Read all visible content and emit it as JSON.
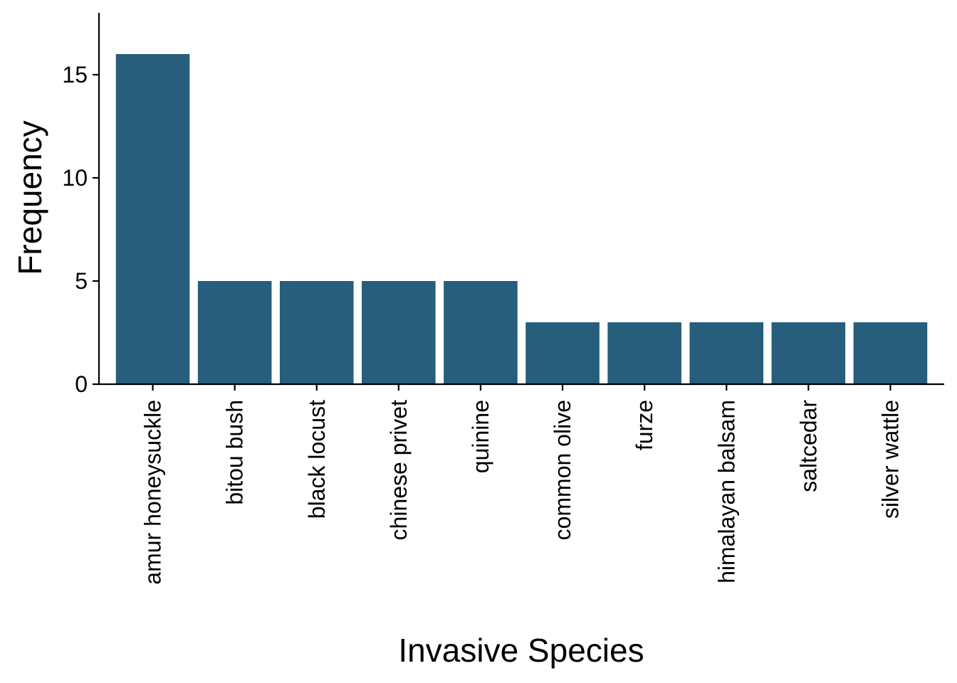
{
  "chart_data": {
    "type": "bar",
    "title": "",
    "xlabel": "Invasive Species",
    "ylabel": "Frequency",
    "categories": [
      "amur honeysuckle",
      "bitou bush",
      "black locust",
      "chinese privet",
      "quinine",
      "common olive",
      "furze",
      "himalayan balsam",
      "saltcedar",
      "silver wattle"
    ],
    "values": [
      16,
      5,
      5,
      5,
      5,
      3,
      3,
      3,
      3,
      3
    ],
    "ylim": [
      0,
      18
    ],
    "yticks": [
      0,
      5,
      10,
      15
    ],
    "ytick_labels": [
      "0",
      "5",
      "10",
      "15"
    ],
    "bar_color": "#265e7b",
    "grid": false,
    "legend": "none"
  }
}
